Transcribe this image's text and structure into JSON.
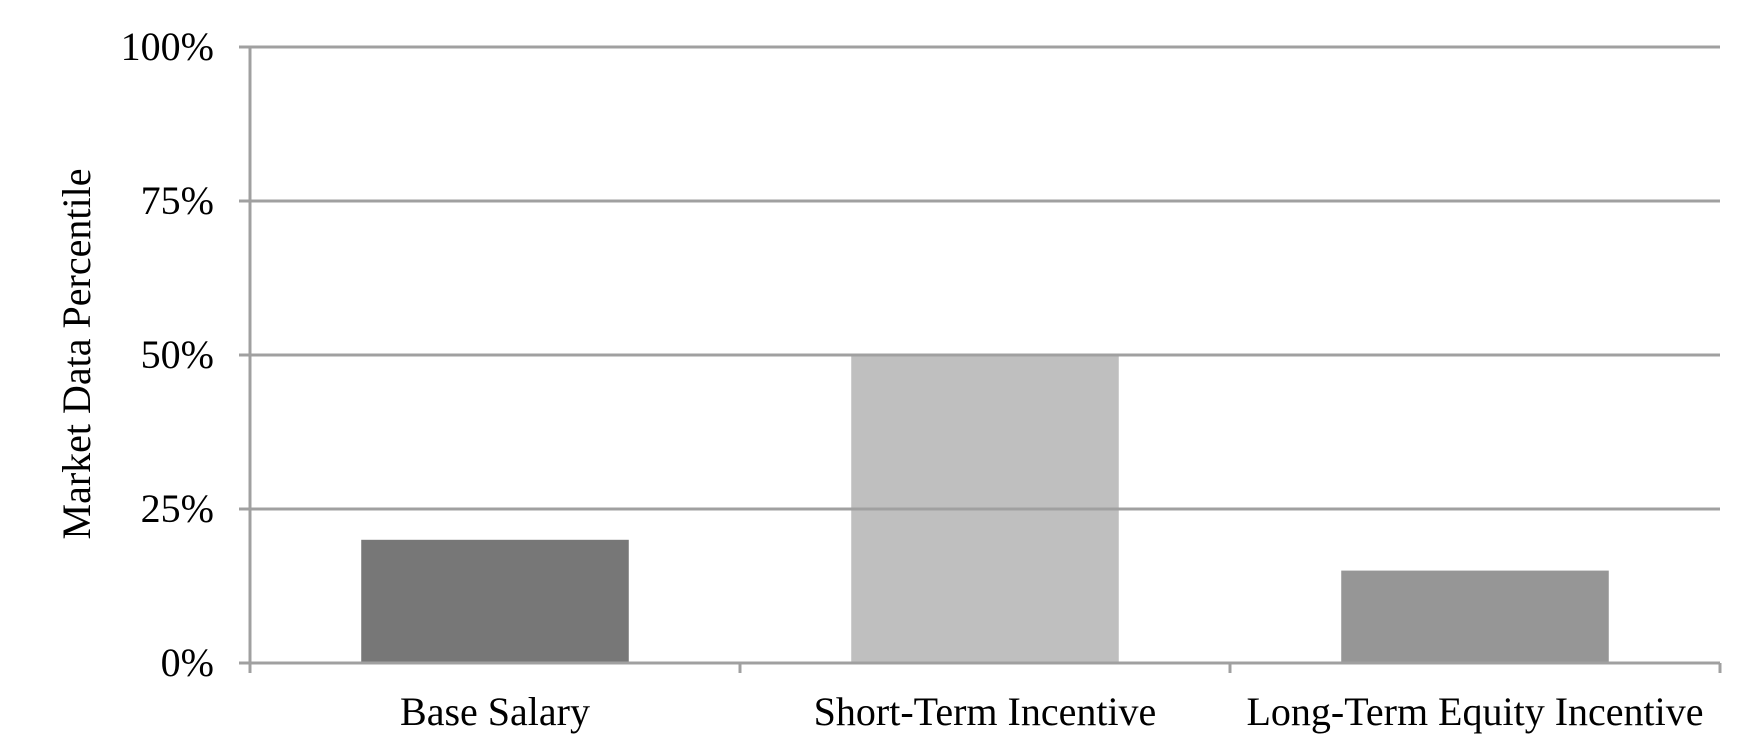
{
  "chart_data": {
    "type": "bar",
    "y_label": "Market Data Percentile",
    "categories": [
      "Base Salary",
      "Short-Term Incentive",
      "Long-Term Equity Incentive"
    ],
    "values": [
      20,
      50,
      15
    ],
    "colors": [
      "#777777",
      "#bfbfbf",
      "#969696"
    ],
    "ylim": [
      0,
      100
    ],
    "yticks": [
      {
        "value": 0,
        "label": "0%"
      },
      {
        "value": 25,
        "label": "25%"
      },
      {
        "value": 50,
        "label": "50%"
      },
      {
        "value": 75,
        "label": "75%"
      },
      {
        "value": 100,
        "label": "100%"
      }
    ],
    "grid": true
  }
}
